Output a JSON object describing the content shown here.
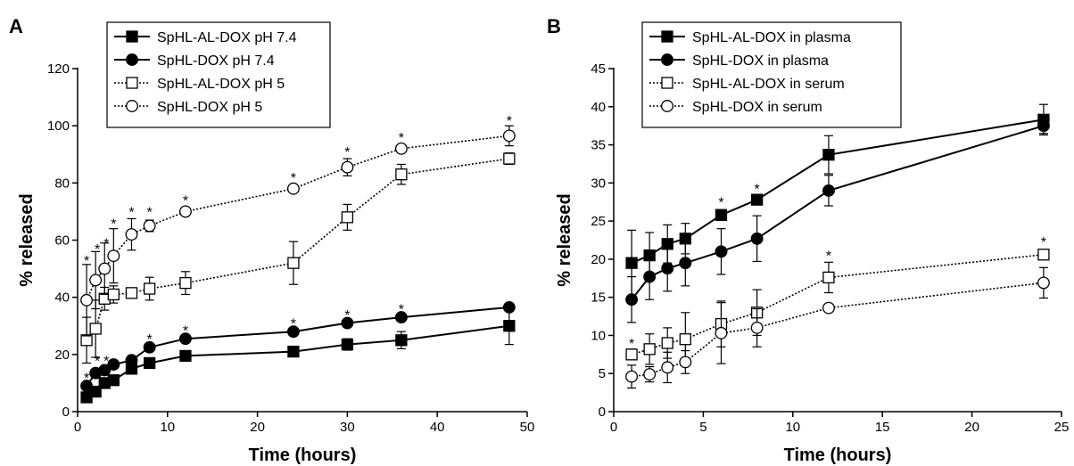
{
  "chart_data": [
    {
      "panel": "A",
      "type": "line",
      "xlabel": "Time (hours)",
      "ylabel": "% released",
      "xlim": [
        0,
        50
      ],
      "ylim": [
        0,
        120
      ],
      "xticks": [
        0,
        10,
        20,
        30,
        40,
        50
      ],
      "yticks": [
        0,
        20,
        40,
        60,
        80,
        100,
        120
      ],
      "legend_position": "top-left",
      "grid": false,
      "series": [
        {
          "name": "SpHL-AL-DOX pH 7.4",
          "marker": "square-filled",
          "line": "solid",
          "x": [
            1,
            2,
            3,
            4,
            6,
            8,
            12,
            24,
            30,
            36,
            48
          ],
          "y": [
            5,
            7,
            10,
            11,
            15,
            17,
            19.5,
            21,
            23.5,
            25,
            30
          ],
          "err": [
            0.8,
            0.8,
            1,
            1,
            1.5,
            1,
            1,
            1.2,
            2,
            3,
            6.5
          ]
        },
        {
          "name": "SpHL-DOX pH 7.4",
          "marker": "circle-filled",
          "line": "solid",
          "x": [
            1,
            2,
            3,
            4,
            6,
            8,
            12,
            24,
            30,
            36,
            48
          ],
          "y": [
            9,
            13.5,
            14.5,
            16.5,
            18,
            22.5,
            25.5,
            28,
            31,
            33,
            36.5
          ],
          "err": [
            1,
            1,
            1,
            1,
            1,
            1,
            1,
            1,
            1,
            1,
            1
          ]
        },
        {
          "name": "SpHL-AL-DOX pH 5",
          "marker": "square-open",
          "line": "dotted",
          "x": [
            1,
            2,
            3,
            4,
            6,
            8,
            12,
            24,
            30,
            36,
            48
          ],
          "y": [
            25,
            29,
            39.5,
            41,
            41.5,
            43,
            45,
            52,
            68,
            83,
            88.5
          ],
          "err": [
            8,
            10,
            4,
            3,
            1.5,
            4,
            4,
            7.5,
            4.5,
            3.5,
            2
          ]
        },
        {
          "name": "SpHL-DOX pH 5",
          "marker": "circle-open",
          "line": "dotted",
          "x": [
            1,
            2,
            3,
            4,
            6,
            8,
            12,
            24,
            30,
            36,
            48
          ],
          "y": [
            39,
            46,
            50,
            54.5,
            62,
            65,
            70,
            78,
            85.5,
            92,
            96.5
          ],
          "err": [
            12.5,
            10,
            9,
            9.5,
            5.5,
            2,
            1,
            1,
            3,
            1,
            3.5
          ]
        }
      ],
      "significance": [
        {
          "label": "*",
          "x": 1,
          "y": 12
        },
        {
          "label": "*",
          "x": 1,
          "y": 53
        },
        {
          "label": "*",
          "x": 2.2,
          "y": 18
        },
        {
          "label": "*",
          "x": 2.2,
          "y": 57
        },
        {
          "label": "*",
          "x": 3.2,
          "y": 18
        },
        {
          "label": "*",
          "x": 3.2,
          "y": 59
        },
        {
          "label": "*",
          "x": 4,
          "y": 66
        },
        {
          "label": "*",
          "x": 6,
          "y": 70
        },
        {
          "label": "*",
          "x": 8,
          "y": 70
        },
        {
          "label": "*",
          "x": 8,
          "y": 25.5
        },
        {
          "label": "*",
          "x": 12,
          "y": 74
        },
        {
          "label": "*",
          "x": 12,
          "y": 28.5
        },
        {
          "label": "*",
          "x": 24,
          "y": 82
        },
        {
          "label": "*",
          "x": 24,
          "y": 31
        },
        {
          "label": "*",
          "x": 30,
          "y": 91
        },
        {
          "label": "*",
          "x": 30,
          "y": 34
        },
        {
          "label": "*",
          "x": 36,
          "y": 96
        },
        {
          "label": "*",
          "x": 36,
          "y": 36
        },
        {
          "label": "*",
          "x": 48,
          "y": 102
        }
      ]
    },
    {
      "panel": "B",
      "type": "line",
      "xlabel": "Time (hours)",
      "ylabel": "% released",
      "xlim": [
        0,
        25
      ],
      "ylim": [
        0,
        45
      ],
      "xticks": [
        0,
        5,
        10,
        15,
        20,
        25
      ],
      "yticks": [
        0,
        5,
        10,
        15,
        20,
        25,
        30,
        35,
        40,
        45
      ],
      "legend_position": "top-left",
      "grid": false,
      "series": [
        {
          "name": "SpHL-AL-DOX in plasma",
          "marker": "square-filled",
          "line": "solid",
          "x": [
            1,
            2,
            3,
            4,
            6,
            8,
            12,
            24
          ],
          "y": [
            19.5,
            20.5,
            22,
            22.7,
            25.8,
            27.8,
            33.7,
            38.3
          ],
          "err": [
            4.3,
            3,
            2.5,
            2,
            0.7,
            0.6,
            2.5,
            2
          ]
        },
        {
          "name": "SpHL-DOX in plasma",
          "marker": "circle-filled",
          "line": "solid",
          "x": [
            1,
            2,
            3,
            4,
            6,
            8,
            12,
            24
          ],
          "y": [
            14.7,
            17.7,
            18.8,
            19.5,
            21,
            22.7,
            29,
            37.5
          ],
          "err": [
            3,
            3,
            3,
            3,
            3,
            3,
            2,
            1
          ]
        },
        {
          "name": "SpHL-AL-DOX in serum",
          "marker": "square-open",
          "line": "dotted",
          "x": [
            1,
            2,
            3,
            4,
            6,
            8,
            12,
            24
          ],
          "y": [
            7.5,
            8.2,
            9,
            9.5,
            11.5,
            13,
            17.6,
            20.6
          ],
          "err": [
            0.7,
            2,
            2,
            3.5,
            3,
            3,
            2,
            0.6
          ]
        },
        {
          "name": "SpHL-DOX in serum",
          "marker": "circle-open",
          "line": "dotted",
          "x": [
            1,
            2,
            3,
            4,
            6,
            8,
            12,
            24
          ],
          "y": [
            4.6,
            4.9,
            5.8,
            6.5,
            10.3,
            11,
            13.6,
            16.9
          ],
          "err": [
            1.5,
            1,
            2,
            1.5,
            4,
            2.5,
            0.3,
            2
          ]
        }
      ],
      "significance": [
        {
          "label": "*",
          "x": 1,
          "y": 9
        },
        {
          "label": "*",
          "x": 6,
          "y": 27.5
        },
        {
          "label": "*",
          "x": 8,
          "y": 29.3
        },
        {
          "label": "*",
          "x": 12,
          "y": 20.5
        },
        {
          "label": "*",
          "x": 24,
          "y": 22.3
        }
      ]
    }
  ]
}
